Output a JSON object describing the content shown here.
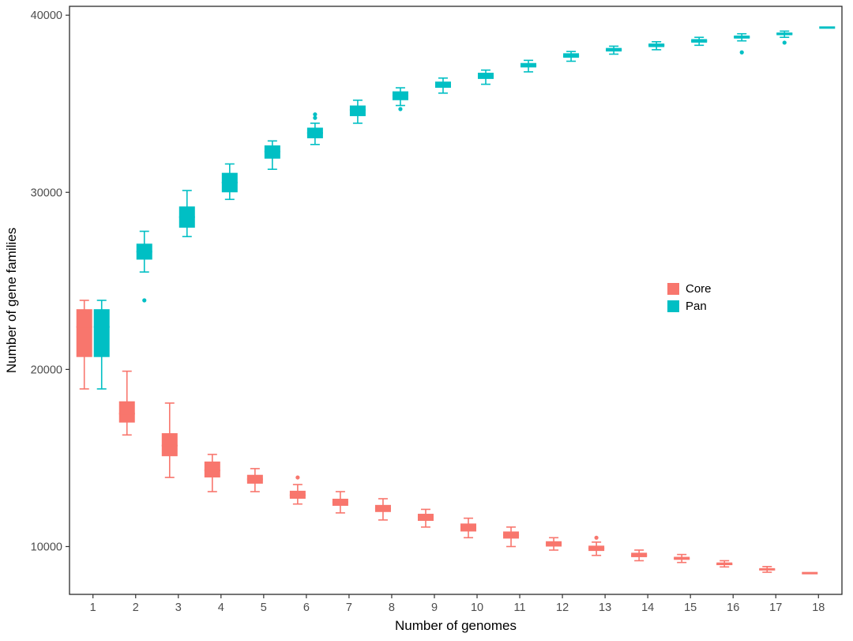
{
  "chart_data": {
    "type": "boxplot",
    "title": "",
    "xlabel": "Number of genomes",
    "ylabel": "Number of gene families",
    "xticks": [
      1,
      2,
      3,
      4,
      5,
      6,
      7,
      8,
      9,
      10,
      11,
      12,
      13,
      14,
      15,
      16,
      17,
      18
    ],
    "yticks": [
      10000,
      20000,
      30000,
      40000
    ],
    "xlim": [
      0.45,
      18.55
    ],
    "ylim": [
      7300,
      40500
    ],
    "grid": false,
    "legend_position": "inside-right-middle",
    "axis_tick_color": "#4d4d4d",
    "axis_title_color": "#000000",
    "panel_border_color": "#2b2b2b",
    "series": [
      {
        "name": "Core",
        "color": "#F8766D",
        "boxes": [
          {
            "x": 1,
            "low": 18900,
            "q1": 20700,
            "median": 22400,
            "q3": 23400,
            "high": 23900,
            "outliers": []
          },
          {
            "x": 2,
            "low": 16300,
            "q1": 17000,
            "median": 17500,
            "q3": 18200,
            "high": 19900,
            "outliers": []
          },
          {
            "x": 3,
            "low": 13900,
            "q1": 15100,
            "median": 15700,
            "q3": 16400,
            "high": 18100,
            "outliers": []
          },
          {
            "x": 4,
            "low": 13100,
            "q1": 13900,
            "median": 14300,
            "q3": 14800,
            "high": 15200,
            "outliers": []
          },
          {
            "x": 5,
            "low": 13100,
            "q1": 13550,
            "median": 13800,
            "q3": 14050,
            "high": 14400,
            "outliers": []
          },
          {
            "x": 6,
            "low": 12400,
            "q1": 12700,
            "median": 12900,
            "q3": 13150,
            "high": 13500,
            "outliers": [
              13900
            ]
          },
          {
            "x": 7,
            "low": 11900,
            "q1": 12300,
            "median": 12500,
            "q3": 12700,
            "high": 13100,
            "outliers": []
          },
          {
            "x": 8,
            "low": 11500,
            "q1": 11950,
            "median": 12150,
            "q3": 12350,
            "high": 12700,
            "outliers": []
          },
          {
            "x": 9,
            "low": 11100,
            "q1": 11450,
            "median": 11650,
            "q3": 11850,
            "high": 12100,
            "outliers": []
          },
          {
            "x": 10,
            "low": 10500,
            "q1": 10850,
            "median": 11050,
            "q3": 11300,
            "high": 11600,
            "outliers": []
          },
          {
            "x": 11,
            "low": 10000,
            "q1": 10450,
            "median": 10650,
            "q3": 10850,
            "high": 11100,
            "outliers": []
          },
          {
            "x": 12,
            "low": 9800,
            "q1": 10000,
            "median": 10150,
            "q3": 10300,
            "high": 10500,
            "outliers": []
          },
          {
            "x": 13,
            "low": 9500,
            "q1": 9750,
            "median": 9900,
            "q3": 10050,
            "high": 10250,
            "outliers": [
              10500
            ]
          },
          {
            "x": 14,
            "low": 9200,
            "q1": 9400,
            "median": 9500,
            "q3": 9650,
            "high": 9800,
            "outliers": []
          },
          {
            "x": 15,
            "low": 9100,
            "q1": 9250,
            "median": 9330,
            "q3": 9420,
            "high": 9550,
            "outliers": []
          },
          {
            "x": 16,
            "low": 8850,
            "q1": 8950,
            "median": 9000,
            "q3": 9100,
            "high": 9200,
            "outliers": []
          },
          {
            "x": 17,
            "low": 8550,
            "q1": 8650,
            "median": 8700,
            "q3": 8780,
            "high": 8870,
            "outliers": []
          },
          {
            "x": 18,
            "low": 8500,
            "q1": 8500,
            "median": 8500,
            "q3": 8500,
            "high": 8500,
            "outliers": []
          }
        ]
      },
      {
        "name": "Pan",
        "color": "#00BFC4",
        "boxes": [
          {
            "x": 1,
            "low": 18900,
            "q1": 20700,
            "median": 22400,
            "q3": 23400,
            "high": 23900,
            "outliers": []
          },
          {
            "x": 2,
            "low": 25500,
            "q1": 26200,
            "median": 26650,
            "q3": 27100,
            "high": 27800,
            "outliers": [
              23900
            ]
          },
          {
            "x": 3,
            "low": 27500,
            "q1": 28000,
            "median": 28600,
            "q3": 29200,
            "high": 30100,
            "outliers": []
          },
          {
            "x": 4,
            "low": 29600,
            "q1": 30000,
            "median": 30550,
            "q3": 31100,
            "high": 31600,
            "outliers": []
          },
          {
            "x": 5,
            "low": 31300,
            "q1": 31900,
            "median": 32300,
            "q3": 32650,
            "high": 32900,
            "outliers": []
          },
          {
            "x": 6,
            "low": 32700,
            "q1": 33050,
            "median": 33350,
            "q3": 33650,
            "high": 33900,
            "outliers": [
              34200,
              34400
            ]
          },
          {
            "x": 7,
            "low": 33900,
            "q1": 34300,
            "median": 34650,
            "q3": 34900,
            "high": 35200,
            "outliers": []
          },
          {
            "x": 8,
            "low": 34900,
            "q1": 35200,
            "median": 35450,
            "q3": 35700,
            "high": 35900,
            "outliers": [
              34700
            ]
          },
          {
            "x": 9,
            "low": 35600,
            "q1": 35900,
            "median": 36050,
            "q3": 36250,
            "high": 36450,
            "outliers": []
          },
          {
            "x": 10,
            "low": 36100,
            "q1": 36400,
            "median": 36550,
            "q3": 36750,
            "high": 36900,
            "outliers": []
          },
          {
            "x": 11,
            "low": 36800,
            "q1": 37050,
            "median": 37150,
            "q3": 37300,
            "high": 37450,
            "outliers": []
          },
          {
            "x": 12,
            "low": 37400,
            "q1": 37600,
            "median": 37700,
            "q3": 37850,
            "high": 37950,
            "outliers": []
          },
          {
            "x": 13,
            "low": 37800,
            "q1": 37950,
            "median": 38050,
            "q3": 38150,
            "high": 38250,
            "outliers": []
          },
          {
            "x": 14,
            "low": 38050,
            "q1": 38200,
            "median": 38300,
            "q3": 38400,
            "high": 38500,
            "outliers": []
          },
          {
            "x": 15,
            "low": 38300,
            "q1": 38450,
            "median": 38550,
            "q3": 38650,
            "high": 38750,
            "outliers": []
          },
          {
            "x": 16,
            "low": 38550,
            "q1": 38680,
            "median": 38760,
            "q3": 38850,
            "high": 38950,
            "outliers": [
              37900
            ]
          },
          {
            "x": 17,
            "low": 38750,
            "q1": 38870,
            "median": 38950,
            "q3": 39020,
            "high": 39100,
            "outliers": [
              38450
            ]
          },
          {
            "x": 18,
            "low": 39300,
            "q1": 39300,
            "median": 39300,
            "q3": 39300,
            "high": 39300,
            "outliers": []
          }
        ]
      }
    ]
  }
}
